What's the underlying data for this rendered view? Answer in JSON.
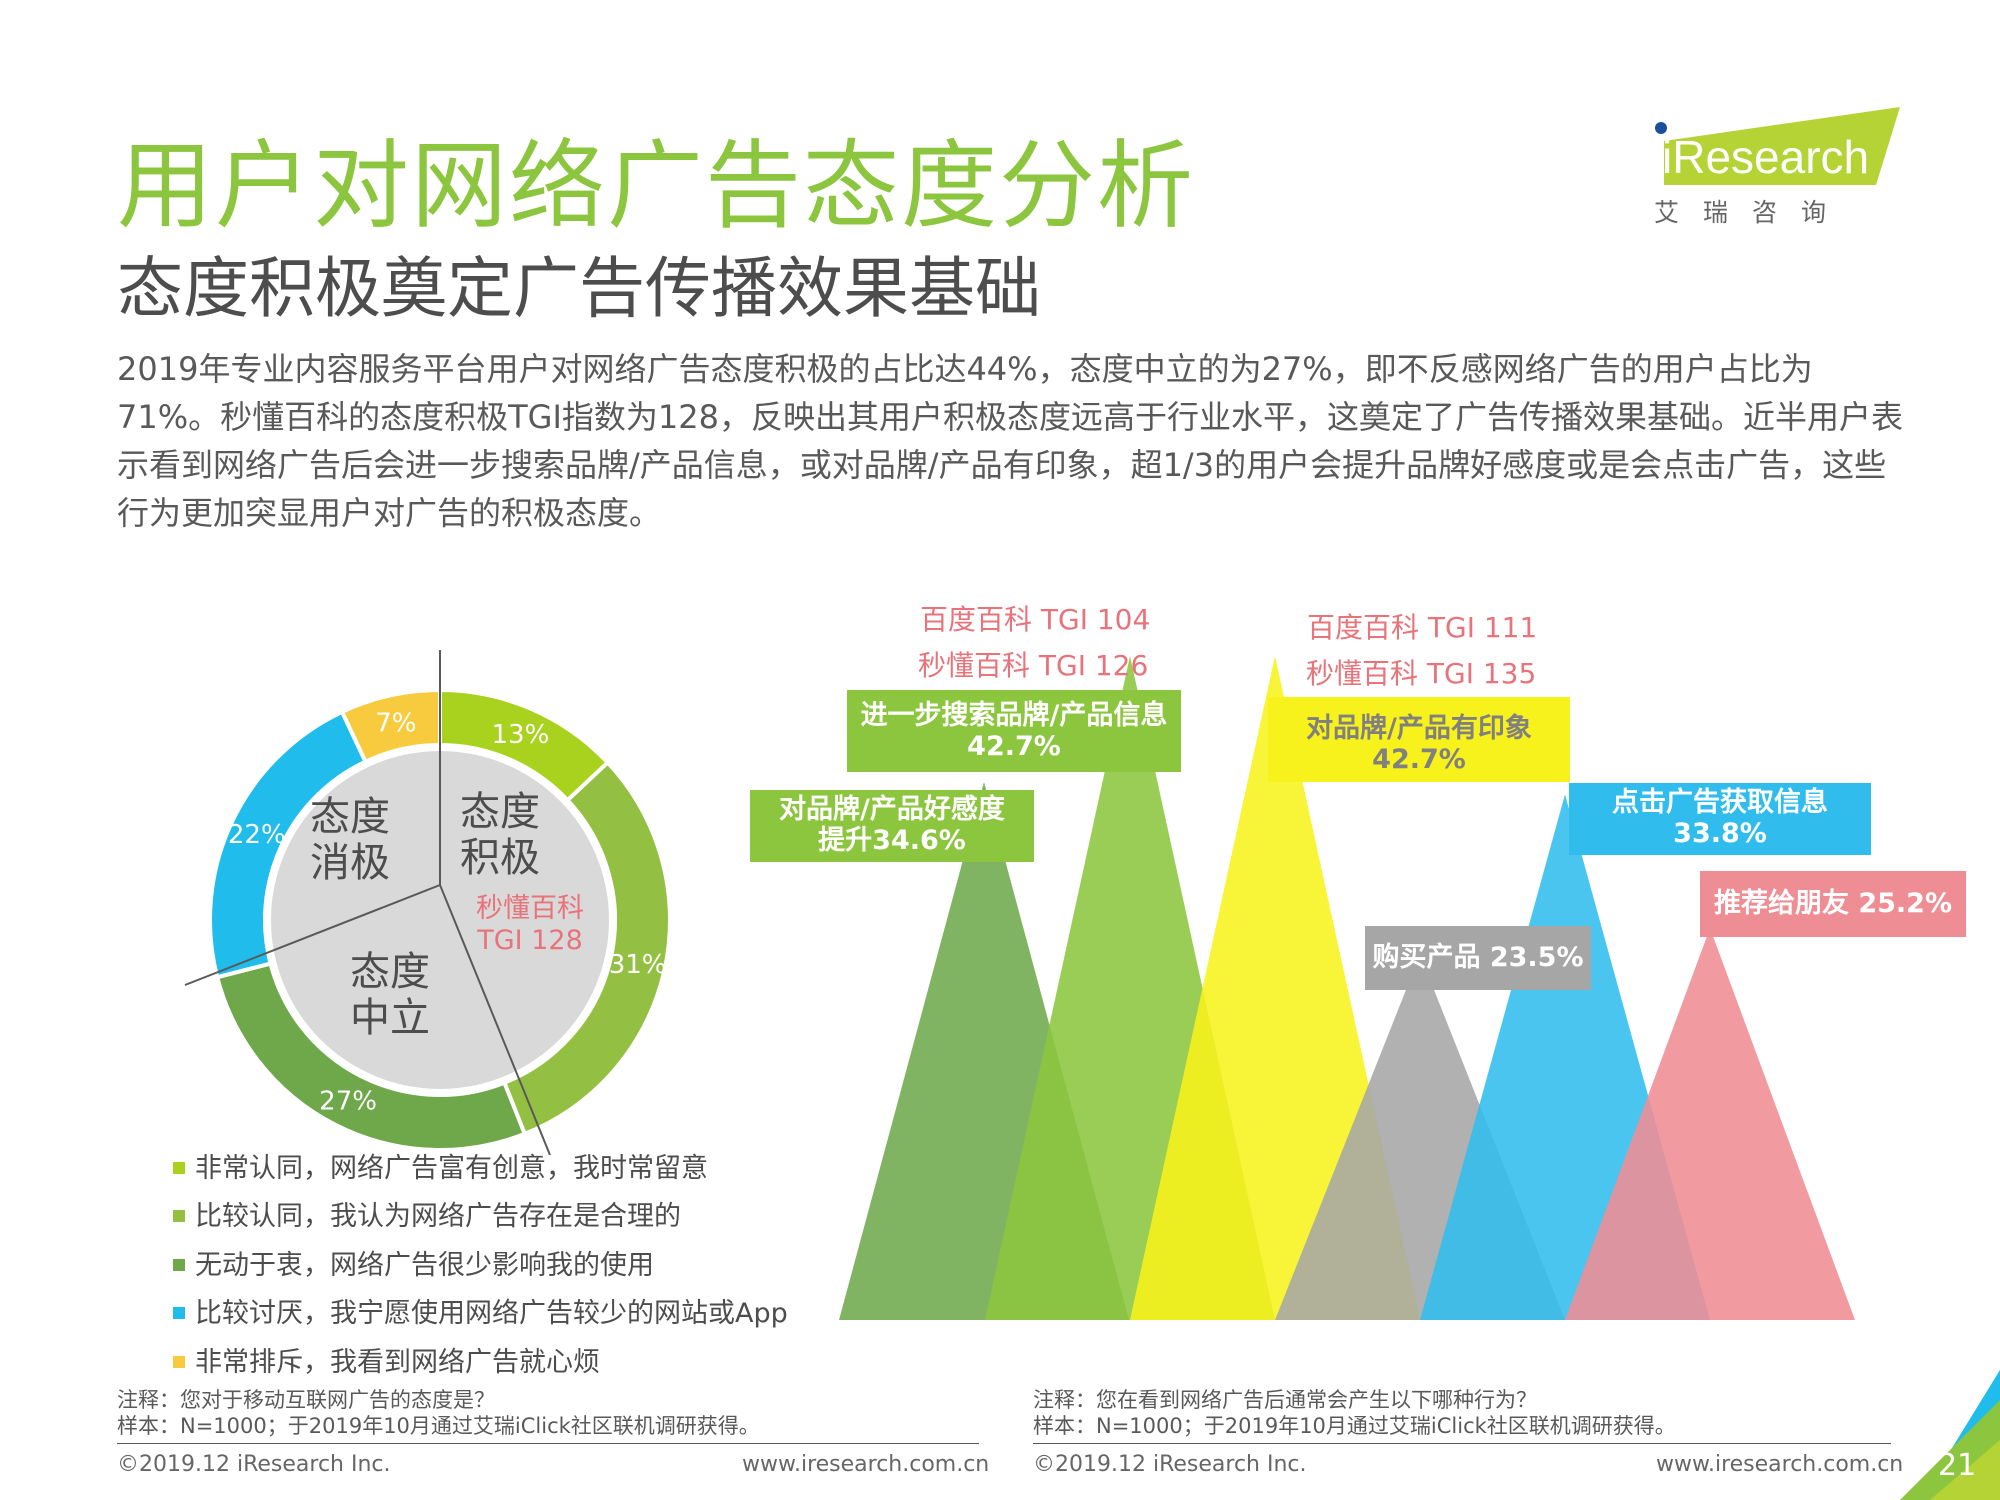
{
  "header": {
    "title": "用户对网络广告态度分析",
    "subtitle": "态度积极奠定广告传播效果基础",
    "summary": "2019年专业内容服务平台用户对网络广告态度积极的占比达44%，态度中立的为27%，即不反感网络广告的用户占比为71%。秒懂百科的态度积极TGI指数为128，反映出其用户积极态度远高于行业水平，这奠定了广告传播效果基础。近半用户表示看到网络广告后会进一步搜索品牌/产品信息，或对品牌/产品有印象，超1/3的用户会提升品牌好感度或是会点击广告，这些行为更加突显用户对广告的积极态度。"
  },
  "logo": {
    "text": "iResearch",
    "cn": "艾瑞咨询",
    "accent": "#b5d334",
    "dot_color": "#1a4f9c"
  },
  "chart_data": [
    {
      "type": "pie",
      "style": "donut",
      "values": [
        13,
        31,
        27,
        22,
        7
      ],
      "labels": [
        "13%",
        "31%",
        "27%",
        "22%",
        "7%"
      ],
      "colors": [
        "#a8d21e",
        "#93c043",
        "#6ea84a",
        "#1fbcec",
        "#f7cb3d"
      ],
      "legend": [
        "非常认同，网络广告富有创意，我时常留意",
        "比较认同，我认为网络广告存在是合理的",
        "无动于衷，网络广告很少影响我的使用",
        "比较讨厌，我宁愿使用网络广告较少的网站或App",
        "非常排斥，我看到网络广告就心烦"
      ],
      "groups": [
        {
          "name": "态度\n积极",
          "name_lines": [
            "态度",
            "积极"
          ],
          "percent": 44,
          "tgi_lines": [
            "秒懂百科",
            "TGI 128"
          ]
        },
        {
          "name_lines": [
            "态度",
            "中立"
          ],
          "percent": 27
        },
        {
          "name_lines": [
            "态度",
            "消极"
          ],
          "percent": 29
        }
      ],
      "inner_color": "#d9d9d9",
      "tgi_color": "#e8737a"
    },
    {
      "type": "area",
      "style": "triangle-peaks",
      "series": [
        {
          "name_lines": [
            "对品牌/产品好感度",
            "提升34.6%"
          ],
          "value": 34.6,
          "color": "#6eaa4d"
        },
        {
          "name_lines": [
            "进一步搜索品牌/产品信息",
            "42.7%"
          ],
          "value": 42.7,
          "color": "#8cc63f"
        },
        {
          "name_lines": [
            "对品牌/产品有印象",
            "42.7%"
          ],
          "value": 42.7,
          "color": "#f7f21b",
          "label_text_color": "#808080"
        },
        {
          "name_lines": [
            "购买产品 23.5%"
          ],
          "value": 23.5,
          "color": "#a6a6a6"
        },
        {
          "name_lines": [
            "点击广告获取信息",
            "33.8%"
          ],
          "value": 33.8,
          "color": "#30bdee"
        },
        {
          "name_lines": [
            "推荐给朋友 25.2%"
          ],
          "value": 25.2,
          "color": "#ef8d94"
        }
      ],
      "tgi_annotations": [
        {
          "lines": [
            "百度百科 TGI 104",
            "秒懂百科 TGI 126"
          ]
        },
        {
          "lines": [
            "百度百科 TGI 111",
            "秒懂百科 TGI 135"
          ]
        }
      ]
    }
  ],
  "notes": {
    "left": [
      "注释：您对于移动互联网广告的态度是？",
      "样本：N=1000；于2019年10月通过艾瑞iClick社区联机调研获得。"
    ],
    "right": [
      "注释：您在看到网络广告后通常会产生以下哪种行为？",
      "样本：N=1000；于2019年10月通过艾瑞iClick社区联机调研获得。"
    ]
  },
  "footer": {
    "copyright": "©2019.12 iResearch Inc.",
    "url": "www.iresearch.com.cn",
    "page": "21"
  }
}
